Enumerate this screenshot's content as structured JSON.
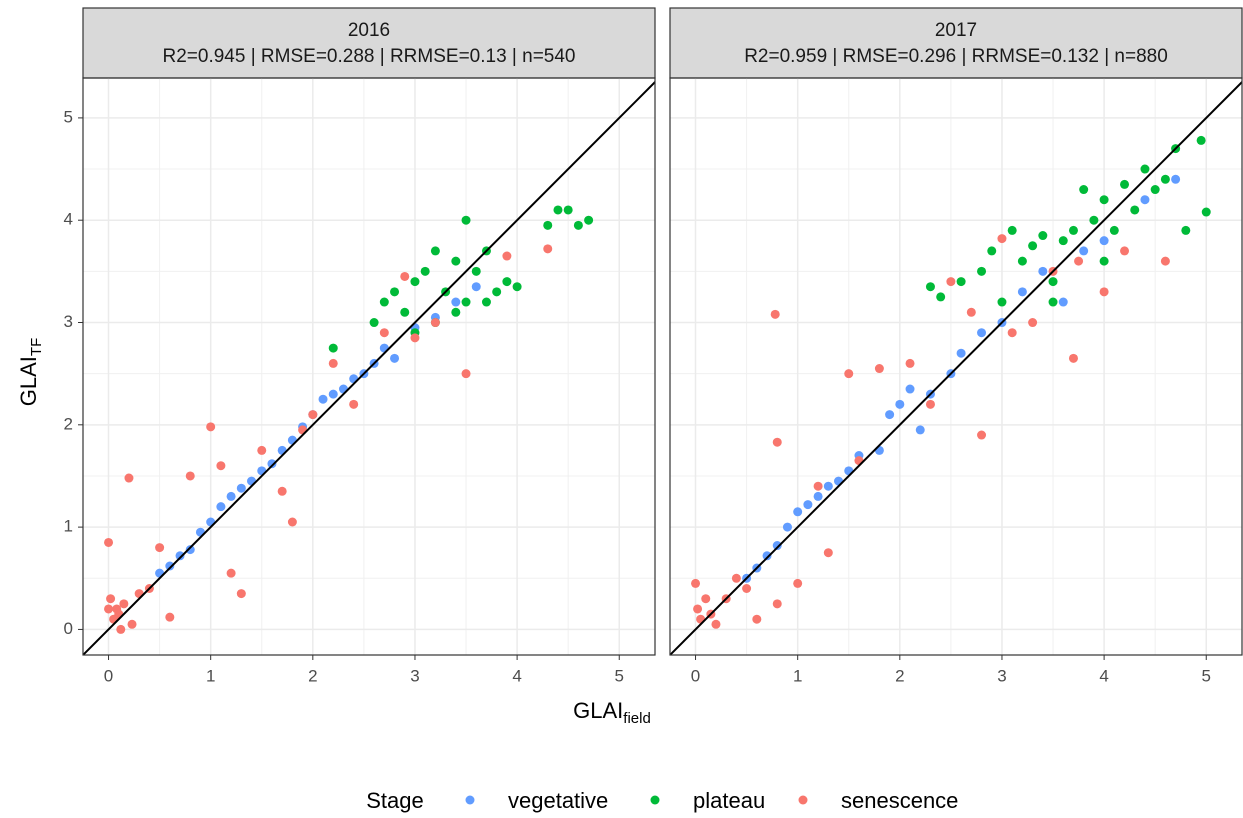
{
  "chart_data": {
    "type": "scatter",
    "x_label": "GLAI",
    "x_label_sub": "field",
    "y_label": "GLAI",
    "y_label_sub": "TF",
    "legend_title": "Stage",
    "series": [
      {
        "name": "vegetative",
        "color": "#619CFF"
      },
      {
        "name": "plateau",
        "color": "#00BA38"
      },
      {
        "name": "senescence",
        "color": "#F8766D"
      }
    ],
    "xlim": [
      -0.25,
      5.35
    ],
    "ylim": [
      -0.25,
      5.39
    ],
    "xticks": [
      0,
      1,
      2,
      3,
      4,
      5
    ],
    "yticks": [
      0,
      1,
      2,
      3,
      4,
      5
    ],
    "grid": true,
    "facets": [
      {
        "title": "2016",
        "subtitle": "R2=0.945 | RMSE=0.288 | RRMSE=0.13 | n=540",
        "points": [
          {
            "x": [
              0.5,
              0.6,
              0.7,
              0.8,
              0.9,
              1.0,
              1.1,
              1.2,
              1.3,
              1.4,
              1.5,
              1.6,
              1.7,
              1.8,
              1.9,
              2.0,
              2.1,
              2.2,
              2.3,
              2.4,
              2.5,
              2.6,
              2.7,
              2.8,
              3.0,
              3.2,
              3.4,
              3.6
            ],
            "y": [
              0.55,
              0.62,
              0.72,
              0.78,
              0.95,
              1.05,
              1.2,
              1.3,
              1.38,
              1.45,
              1.55,
              1.62,
              1.75,
              1.85,
              1.98,
              2.1,
              2.25,
              2.3,
              2.35,
              2.45,
              2.5,
              2.6,
              2.75,
              2.65,
              2.95,
              3.05,
              3.2,
              3.35
            ]
          },
          {
            "x": [
              2.6,
              2.7,
              2.8,
              2.9,
              3.0,
              3.1,
              3.2,
              3.2,
              3.3,
              3.4,
              3.5,
              3.5,
              3.6,
              3.7,
              3.8,
              3.9,
              4.0,
              4.3,
              4.4,
              4.5,
              4.6,
              4.7,
              2.2,
              3.0,
              3.4,
              3.7
            ],
            "y": [
              3.0,
              3.2,
              3.3,
              3.1,
              3.4,
              3.5,
              3.0,
              3.7,
              3.3,
              3.6,
              4.0,
              3.2,
              3.5,
              3.7,
              3.3,
              3.4,
              3.35,
              3.95,
              4.1,
              4.1,
              3.95,
              4.0,
              2.75,
              2.9,
              3.1,
              3.2
            ]
          },
          {
            "x": [
              0,
              0.02,
              0.05,
              0.08,
              0.1,
              0.15,
              0.2,
              0.23,
              0.3,
              0.4,
              0.5,
              0.6,
              0.8,
              1.0,
              1.1,
              1.2,
              1.3,
              1.5,
              1.7,
              1.8,
              1.9,
              2.0,
              2.2,
              2.4,
              2.7,
              2.9,
              3.0,
              3.2,
              3.5,
              3.9,
              4.3,
              0.0,
              0.12
            ],
            "y": [
              0.85,
              0.3,
              0.1,
              0.2,
              0.15,
              0.25,
              1.48,
              0.05,
              0.35,
              0.4,
              0.8,
              0.12,
              1.5,
              1.98,
              1.6,
              0.55,
              0.35,
              1.75,
              1.35,
              1.05,
              1.95,
              2.1,
              2.6,
              2.2,
              2.9,
              3.45,
              2.85,
              3.0,
              2.5,
              3.65,
              3.72,
              0.2,
              0.0
            ]
          }
        ]
      },
      {
        "title": "2017",
        "subtitle": "R2=0.959 | RMSE=0.296 | RRMSE=0.132 | n=880",
        "points": [
          {
            "x": [
              0.5,
              0.6,
              0.7,
              0.8,
              0.9,
              1.0,
              1.1,
              1.2,
              1.3,
              1.4,
              1.5,
              1.6,
              1.8,
              1.9,
              2.0,
              2.1,
              2.2,
              2.3,
              2.5,
              2.6,
              2.8,
              3.0,
              3.2,
              3.4,
              3.6,
              3.8,
              4.0,
              4.4,
              4.7
            ],
            "y": [
              0.5,
              0.6,
              0.72,
              0.82,
              1.0,
              1.15,
              1.22,
              1.3,
              1.4,
              1.45,
              1.55,
              1.7,
              1.75,
              2.1,
              2.2,
              2.35,
              1.95,
              2.3,
              2.5,
              2.7,
              2.9,
              3.0,
              3.3,
              3.5,
              3.2,
              3.7,
              3.8,
              4.2,
              4.4
            ]
          },
          {
            "x": [
              2.3,
              2.4,
              2.6,
              2.8,
              2.9,
              3.0,
              3.1,
              3.2,
              3.3,
              3.4,
              3.5,
              3.6,
              3.7,
              3.8,
              3.9,
              4.0,
              4.1,
              4.2,
              4.3,
              4.4,
              4.5,
              4.6,
              4.7,
              4.8,
              4.95,
              5.0,
              3.5,
              4.0
            ],
            "y": [
              3.35,
              3.25,
              3.4,
              3.5,
              3.7,
              3.2,
              3.9,
              3.6,
              3.75,
              3.85,
              3.4,
              3.8,
              3.9,
              4.3,
              4.0,
              4.2,
              3.9,
              4.35,
              4.1,
              4.5,
              4.3,
              4.4,
              4.7,
              3.9,
              4.78,
              4.08,
              3.2,
              3.6
            ]
          },
          {
            "x": [
              0,
              0.02,
              0.05,
              0.1,
              0.15,
              0.2,
              0.3,
              0.4,
              0.5,
              0.6,
              0.8,
              0.78,
              0.8,
              1.0,
              1.2,
              1.3,
              1.5,
              1.6,
              1.8,
              2.1,
              2.3,
              2.5,
              2.7,
              2.8,
              3.0,
              3.1,
              3.3,
              3.5,
              3.7,
              3.75,
              4.0,
              4.2,
              4.6
            ],
            "y": [
              0.45,
              0.2,
              0.1,
              0.3,
              0.15,
              0.05,
              0.3,
              0.5,
              0.4,
              0.1,
              0.25,
              3.08,
              1.83,
              0.45,
              1.4,
              0.75,
              2.5,
              1.65,
              2.55,
              2.6,
              2.2,
              3.4,
              3.1,
              1.9,
              3.82,
              2.9,
              3.0,
              3.5,
              2.65,
              3.6,
              3.3,
              3.7,
              3.6
            ]
          }
        ]
      }
    ]
  }
}
